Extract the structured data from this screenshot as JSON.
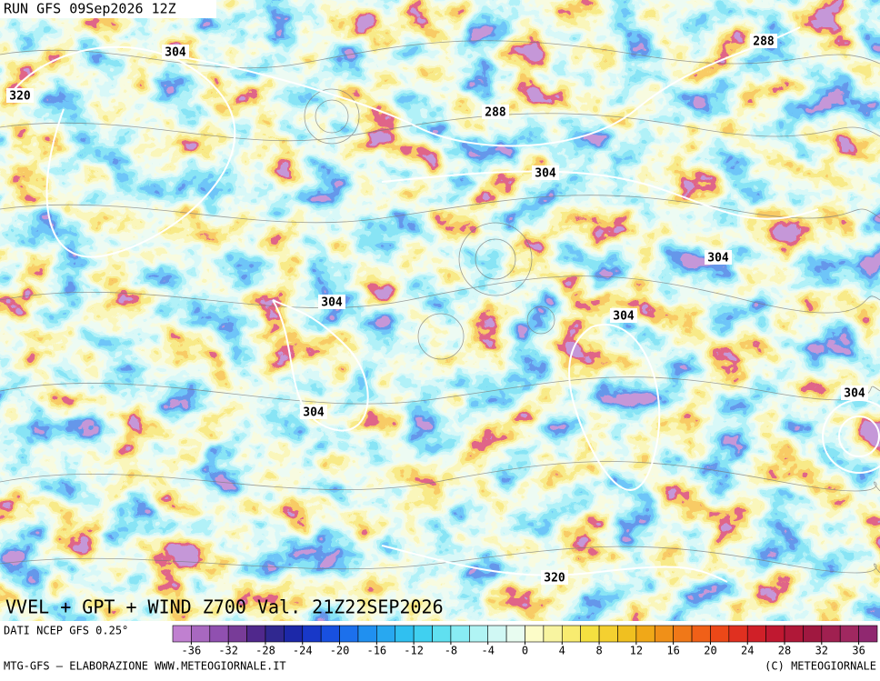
{
  "header": {
    "run": "RUN GFS 09Sep2026 12Z",
    "product": "VVEL + GPT + WIND Z700 Val. 21Z22SEP2026"
  },
  "map": {
    "contour_labels": [
      304,
      320,
      288,
      304,
      288,
      304,
      304,
      304,
      304,
      304,
      320
    ]
  },
  "colorbar": {
    "source": "DATI NCEP GFS 0.25°",
    "lim": [
      -38,
      38
    ],
    "ticks": [
      -36,
      -32,
      -28,
      -24,
      -20,
      -16,
      -12,
      -8,
      -4,
      0,
      4,
      8,
      12,
      16,
      20,
      24,
      28,
      32,
      36
    ],
    "colors": [
      "#c080d0",
      "#a868c0",
      "#9050b0",
      "#783c98",
      "#50288c",
      "#302890",
      "#1c28a8",
      "#1838c8",
      "#1850e0",
      "#1c70ec",
      "#2090f0",
      "#28a8f0",
      "#30c0f0",
      "#40d0f0",
      "#60e0f0",
      "#88ecf4",
      "#b0f4f4",
      "#d0f8f4",
      "#e8fcf0",
      "#fcfcc8",
      "#f8f4a0",
      "#f8ec70",
      "#f4e040",
      "#f4d030",
      "#f0c020",
      "#f0a818",
      "#f09018",
      "#f07818",
      "#f06018",
      "#ec4818",
      "#e03020",
      "#d02028",
      "#c01830",
      "#b01838",
      "#a01840",
      "#a02050",
      "#a02860",
      "#902870"
    ]
  },
  "footer": {
    "left": "MTG-GFS – ELABORAZIONE WWW.METEOGIORNALE.IT",
    "right": "(C) METEOGIORNALE"
  }
}
